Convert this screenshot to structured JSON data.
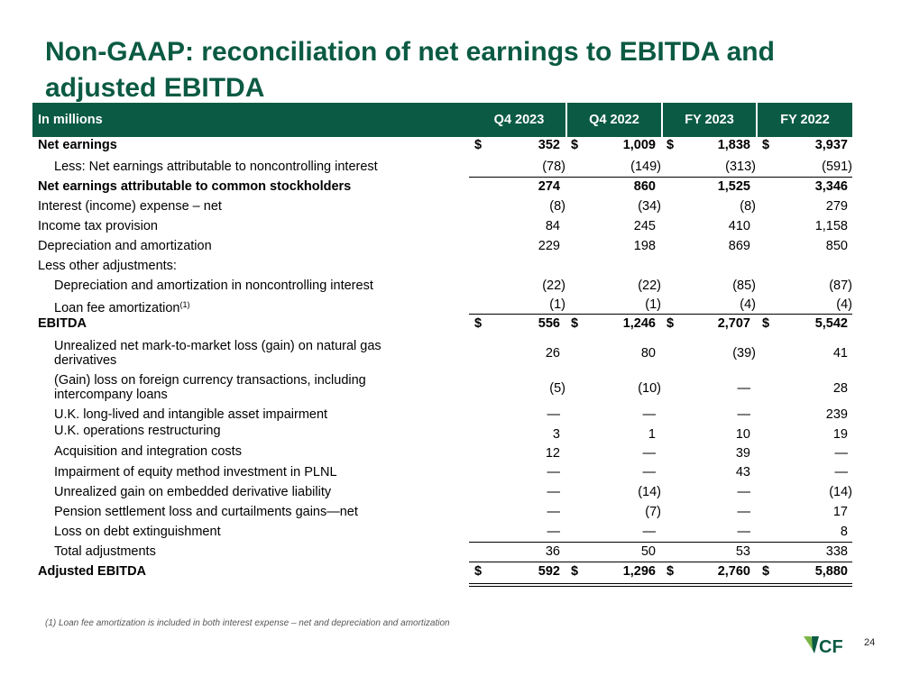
{
  "title_lines": [
    "Non-GAAP: reconciliation of net earnings to EBITDA and",
    "adjusted EBITDA"
  ],
  "header": {
    "label": "In millions",
    "columns": [
      "Q4 2023",
      "Q4 2022",
      "FY 2023",
      "FY 2022"
    ]
  },
  "currency_symbol": "$",
  "rows": {
    "net_earnings": {
      "label": "Net earnings",
      "values": [
        "352",
        "1,009",
        "1,838",
        "3,937"
      ]
    },
    "nci": {
      "label": "Less: Net earnings attributable to noncontrolling interest",
      "values": [
        "(78)",
        "(149)",
        "(313)",
        "(591)"
      ]
    },
    "common": {
      "label": "Net earnings attributable to common stockholders",
      "values": [
        "274",
        "860",
        "1,525",
        "3,346"
      ]
    },
    "interest": {
      "label": "Interest (income) expense – net",
      "values": [
        "(8)",
        "(34)",
        "(8)",
        "279"
      ]
    },
    "tax": {
      "label": "Income tax provision",
      "values": [
        "84",
        "245",
        "410",
        "1,158"
      ]
    },
    "da": {
      "label": "Depreciation and amortization",
      "values": [
        "229",
        "198",
        "869",
        "850"
      ]
    },
    "less_other": {
      "label": "Less other adjustments:"
    },
    "da_nci": {
      "label": "Depreciation and amortization in noncontrolling interest",
      "values": [
        "(22)",
        "(22)",
        "(85)",
        "(87)"
      ]
    },
    "loan_fee": {
      "label": "Loan fee amortization",
      "footnote_ref": "(1)",
      "values": [
        "(1)",
        "(1)",
        "(4)",
        "(4)"
      ]
    },
    "ebitda": {
      "label": "EBITDA",
      "values": [
        "556",
        "1,246",
        "2,707",
        "5,542"
      ]
    },
    "mtm": {
      "label": "Unrealized net mark-to-market loss (gain) on natural gas derivatives",
      "values": [
        "26",
        "80",
        "(39)",
        "41"
      ]
    },
    "fx": {
      "label": "(Gain) loss on foreign currency transactions, including intercompany loans",
      "values": [
        "(5)",
        "(10)",
        "—",
        "28"
      ]
    },
    "uk_impair": {
      "label": "U.K. long-lived and intangible asset impairment",
      "values": [
        "—",
        "—",
        "—",
        "239"
      ]
    },
    "uk_restr": {
      "label": "U.K. operations restructuring",
      "values": [
        "3",
        "1",
        "10",
        "19"
      ]
    },
    "acq": {
      "label": "Acquisition and integration costs",
      "values": [
        "12",
        "—",
        "39",
        "—"
      ]
    },
    "plnl": {
      "label": "Impairment of equity method investment in PLNL",
      "values": [
        "—",
        "—",
        "43",
        "—"
      ]
    },
    "embedded": {
      "label": "Unrealized gain on embedded derivative liability",
      "values": [
        "—",
        "(14)",
        "—",
        "(14)"
      ]
    },
    "pension": {
      "label": "Pension settlement loss and curtailments gains—net",
      "values": [
        "—",
        "(7)",
        "—",
        "17"
      ]
    },
    "debt": {
      "label": "Loss on debt extinguishment",
      "values": [
        "—",
        "—",
        "—",
        "8"
      ]
    },
    "total_adj": {
      "label": "Total adjustments",
      "values": [
        "36",
        "50",
        "53",
        "338"
      ]
    },
    "adj_ebitda": {
      "label": "Adjusted EBITDA",
      "values": [
        "592",
        "1,296",
        "2,760",
        "5,880"
      ]
    }
  },
  "footnote": "(1)    Loan fee amortization is included in both interest expense – net and depreciation and amortization",
  "logo_text": "CF",
  "page_number": "24",
  "colors": {
    "brand_green": "#0b5a43",
    "logo_light": "#7ab648"
  }
}
